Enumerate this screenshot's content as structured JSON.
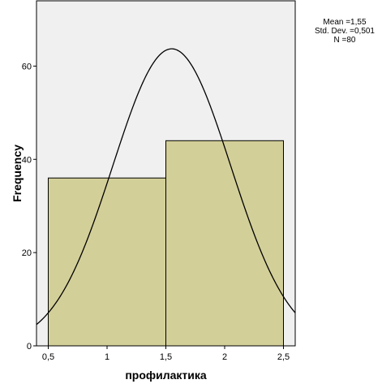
{
  "chart_data": {
    "type": "bar",
    "subtype": "histogram",
    "xlabel": "профилактика",
    "ylabel": "Frequency",
    "xlim": [
      0.4,
      2.6
    ],
    "ylim": [
      0,
      74
    ],
    "x_ticks": [
      0.5,
      1,
      1.5,
      2,
      2.5
    ],
    "x_tick_labels": [
      "0,5",
      "1",
      "1,5",
      "2",
      "2,5"
    ],
    "y_ticks": [
      0,
      20,
      40,
      60
    ],
    "y_tick_labels": [
      "0",
      "20",
      "40",
      "60"
    ],
    "bins": [
      {
        "start": 0.5,
        "end": 1.5,
        "count": 36
      },
      {
        "start": 1.5,
        "end": 2.5,
        "count": 44
      }
    ],
    "normal_curve": {
      "mean": 1.55,
      "std": 0.501,
      "n": 80,
      "bin_width": 1
    },
    "stats": {
      "mean_label": "Mean =1,55",
      "std_label": "Std. Dev. =0,501",
      "n_label": "N =80"
    },
    "grid": false,
    "colors": {
      "plot_background": "#f0f0f0",
      "bar_fill": "#d3cf99",
      "bar_stroke": "#000000",
      "curve": "#000000",
      "axis": "#000000"
    }
  }
}
